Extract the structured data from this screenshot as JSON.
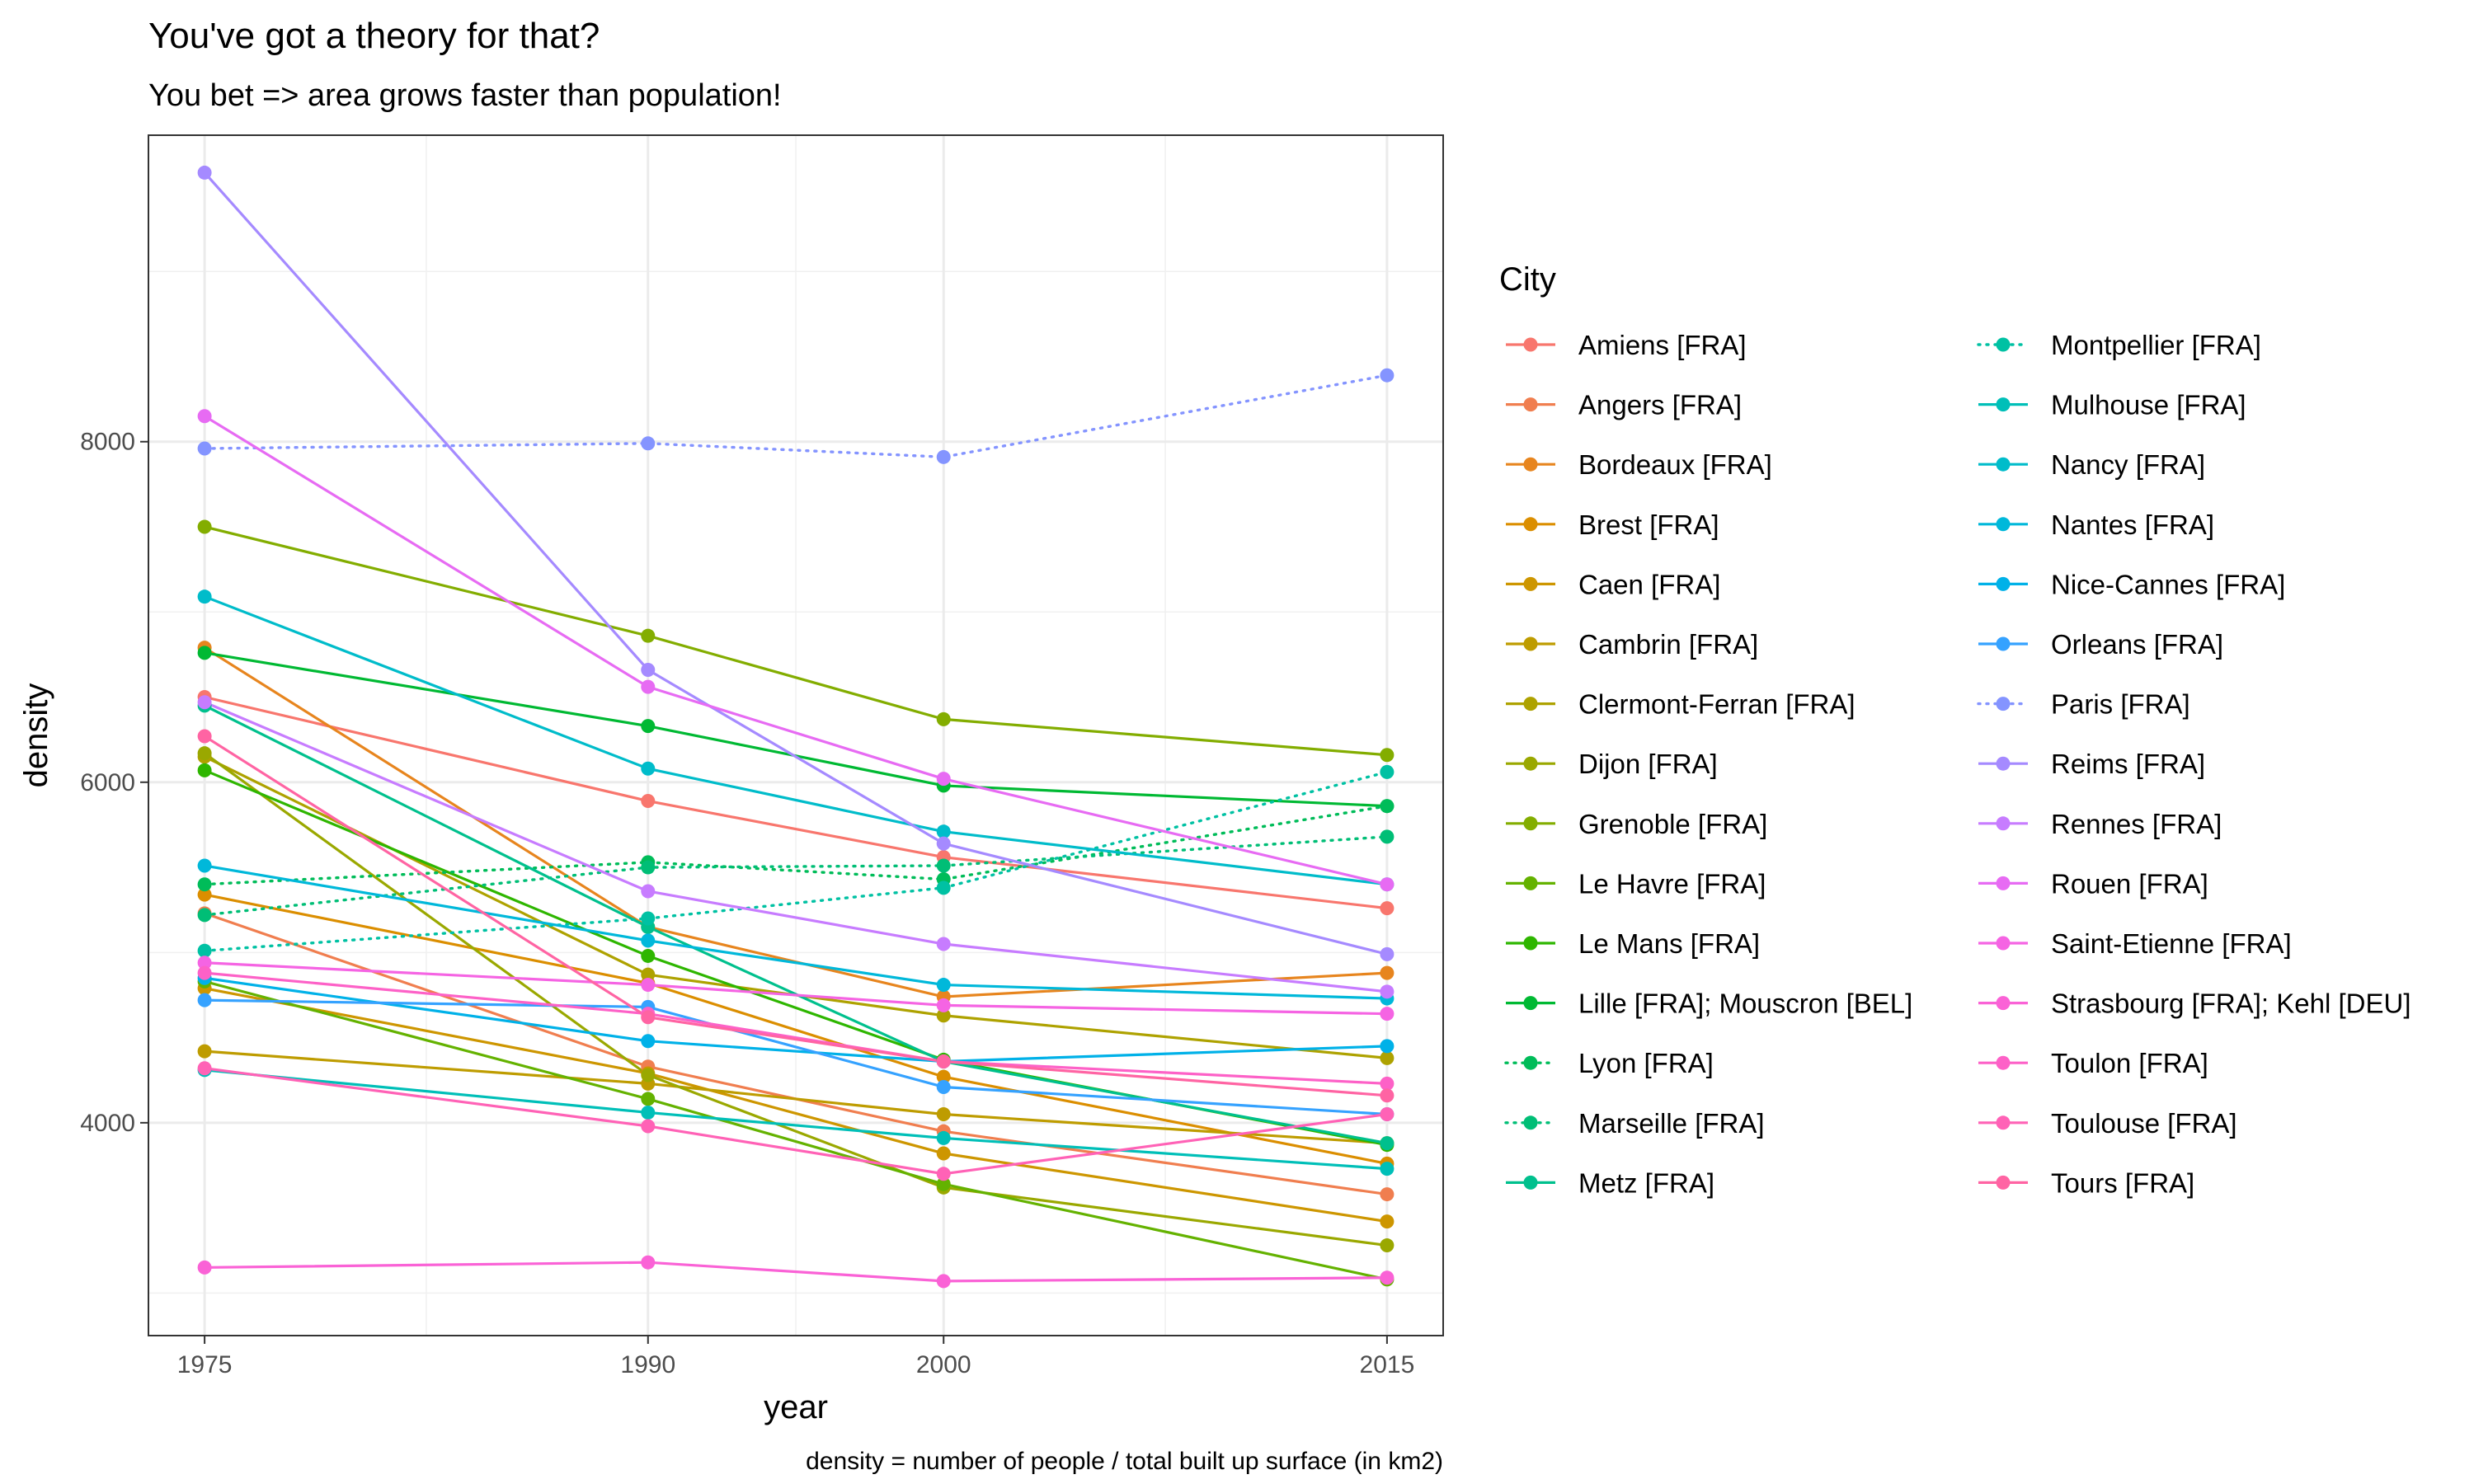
{
  "chart_data": {
    "type": "line",
    "title": "You've got a theory for that?",
    "subtitle": "You bet => area grows faster than population!",
    "xlabel": "year",
    "ylabel": "density",
    "caption": "density = number of people / total built up surface (in km2)",
    "x": [
      1975,
      1990,
      2000,
      2015
    ],
    "xlim": [
      1973.1,
      2016.9
    ],
    "ylim": [
      2750,
      9800
    ],
    "x_ticks": [
      "1975",
      "1990",
      "2000",
      "2015"
    ],
    "y_ticks": [
      {
        "value": 4000,
        "label": "4000"
      },
      {
        "value": 6000,
        "label": "6000"
      },
      {
        "value": 8000,
        "label": "8000"
      }
    ],
    "grid": true,
    "legend_title": "City",
    "legend_position": "right",
    "series": [
      {
        "name": "Amiens [FRA]",
        "color": "#F8766D",
        "linetype": "solid",
        "values": [
          6500,
          5890,
          5560,
          5260
        ]
      },
      {
        "name": "Angers [FRA]",
        "color": "#F07E4F",
        "linetype": "solid",
        "values": [
          5230,
          4330,
          3950,
          3580
        ]
      },
      {
        "name": "Bordeaux [FRA]",
        "color": "#E7851E",
        "linetype": "solid",
        "values": [
          6790,
          5150,
          4740,
          4880
        ]
      },
      {
        "name": "Brest [FRA]",
        "color": "#DB8E00",
        "linetype": "solid",
        "values": [
          5340,
          4820,
          4270,
          3760
        ]
      },
      {
        "name": "Caen [FRA]",
        "color": "#CD9600",
        "linetype": "solid",
        "values": [
          4790,
          4290,
          3820,
          3420
        ]
      },
      {
        "name": "Cambrin [FRA]",
        "color": "#BE9C00",
        "linetype": "solid",
        "values": [
          4420,
          4230,
          4050,
          3880
        ]
      },
      {
        "name": "Clermont-Ferran [FRA]",
        "color": "#AEA200",
        "linetype": "solid",
        "values": [
          6150,
          4870,
          4630,
          4380
        ]
      },
      {
        "name": "Dijon [FRA]",
        "color": "#9AA800",
        "linetype": "solid",
        "values": [
          6170,
          4280,
          3620,
          3280
        ]
      },
      {
        "name": "Grenoble [FRA]",
        "color": "#83AD00",
        "linetype": "solid",
        "values": [
          7500,
          6860,
          6370,
          6160
        ]
      },
      {
        "name": "Le Havre [FRA]",
        "color": "#64B200",
        "linetype": "solid",
        "values": [
          4830,
          4140,
          3640,
          3080
        ]
      },
      {
        "name": "Le Mans [FRA]",
        "color": "#2EB600",
        "linetype": "solid",
        "values": [
          6070,
          4980,
          4370,
          3870
        ]
      },
      {
        "name": "Lille [FRA]; Mouscron [BEL]",
        "color": "#00B933",
        "linetype": "solid",
        "values": [
          6760,
          6330,
          5980,
          5860
        ]
      },
      {
        "name": "Lyon [FRA]",
        "color": "#00BC59",
        "linetype": "dotted",
        "values": [
          5400,
          5530,
          5430,
          5860
        ]
      },
      {
        "name": "Marseille [FRA]",
        "color": "#00BE76",
        "linetype": "dotted",
        "values": [
          5220,
          5500,
          5510,
          5680
        ]
      },
      {
        "name": "Metz [FRA]",
        "color": "#00C08D",
        "linetype": "solid",
        "values": [
          6450,
          5150,
          4360,
          3880
        ]
      },
      {
        "name": "Montpellier [FRA]",
        "color": "#00C1A3",
        "linetype": "dotted",
        "values": [
          5010,
          5200,
          5380,
          6060
        ]
      },
      {
        "name": "Mulhouse [FRA]",
        "color": "#00BFB8",
        "linetype": "solid",
        "values": [
          4310,
          4060,
          3910,
          3730
        ]
      },
      {
        "name": "Nancy [FRA]",
        "color": "#00BCCA",
        "linetype": "solid",
        "values": [
          7090,
          6080,
          5710,
          5400
        ]
      },
      {
        "name": "Nantes [FRA]",
        "color": "#00B8DA",
        "linetype": "solid",
        "values": [
          5510,
          5070,
          4810,
          4730
        ]
      },
      {
        "name": "Nice-Cannes [FRA]",
        "color": "#00B1E8",
        "linetype": "solid",
        "values": [
          4850,
          4480,
          4360,
          4450
        ]
      },
      {
        "name": "Orleans [FRA]",
        "color": "#35A2FF",
        "linetype": "solid",
        "values": [
          4720,
          4680,
          4210,
          4050
        ]
      },
      {
        "name": "Paris [FRA]",
        "color": "#8494FF",
        "linetype": "dotted",
        "values": [
          7960,
          7990,
          7910,
          8390
        ]
      },
      {
        "name": "Reims [FRA]",
        "color": "#A58AFF",
        "linetype": "solid",
        "values": [
          9580,
          6660,
          5640,
          4990
        ]
      },
      {
        "name": "Rennes [FRA]",
        "color": "#C77CFF",
        "linetype": "solid",
        "values": [
          6470,
          5360,
          5050,
          4770
        ]
      },
      {
        "name": "Rouen [FRA]",
        "color": "#E76BF3",
        "linetype": "solid",
        "values": [
          8150,
          6560,
          6020,
          5400
        ]
      },
      {
        "name": "Saint-Etienne [FRA]",
        "color": "#F564E3",
        "linetype": "solid",
        "values": [
          4940,
          4810,
          4690,
          4640
        ]
      },
      {
        "name": "Strasbourg [FRA]; Kehl [DEU]",
        "color": "#FA62D6",
        "linetype": "solid",
        "values": [
          3150,
          3180,
          3070,
          3090
        ]
      },
      {
        "name": "Toulon [FRA]",
        "color": "#FD61C7",
        "linetype": "solid",
        "values": [
          4880,
          4640,
          4360,
          4230
        ]
      },
      {
        "name": "Toulouse [FRA]",
        "color": "#FF62B6",
        "linetype": "solid",
        "values": [
          4320,
          3980,
          3700,
          4050
        ]
      },
      {
        "name": "Tours [FRA]",
        "color": "#FF64A3",
        "linetype": "solid",
        "values": [
          6270,
          4620,
          4360,
          4160
        ]
      }
    ]
  }
}
